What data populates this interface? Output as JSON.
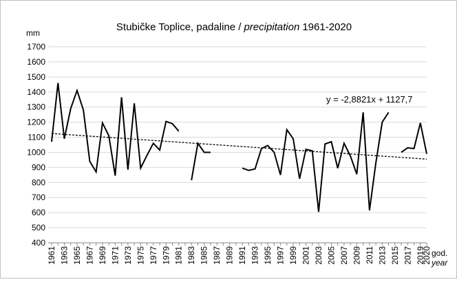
{
  "chart_data": {
    "type": "line",
    "title": [
      "Stubičke Toplice, padaline /",
      "precipitation",
      "1961-2020"
    ],
    "y_label": "mm",
    "x_label": [
      "god.",
      "year"
    ],
    "categories": [
      "1961",
      null,
      "1963",
      null,
      "1965",
      null,
      "1967",
      null,
      "1969",
      null,
      "1971",
      null,
      "1973",
      null,
      "1975",
      null,
      "1977",
      null,
      "1979",
      null,
      "1981",
      null,
      "1983",
      null,
      "1985",
      null,
      "1987",
      null,
      "1989",
      null,
      "1991",
      null,
      "1993",
      null,
      "1995",
      null,
      "1997",
      null,
      "1999",
      null,
      "2001",
      null,
      "2003",
      null,
      "2005",
      null,
      "2007",
      null,
      "2009",
      null,
      "2011",
      null,
      "2013",
      null,
      "2015",
      null,
      "2017",
      null,
      "2019",
      "2020"
    ],
    "values": [
      1070,
      1460,
      1090,
      1290,
      1410,
      1280,
      940,
      870,
      1195,
      1110,
      845,
      1365,
      885,
      1325,
      895,
      980,
      1060,
      1015,
      1205,
      1190,
      1140,
      null,
      815,
      1060,
      1000,
      1000,
      null,
      null,
      null,
      null,
      895,
      880,
      890,
      1025,
      1045,
      1000,
      850,
      1150,
      1090,
      825,
      1020,
      1010,
      605,
      1055,
      1070,
      895,
      1060,
      975,
      855,
      1265,
      615,
      930,
      1200,
      1265,
      null,
      1000,
      1030,
      1025,
      1195,
      990
    ],
    "color": "#000000",
    "ylim": [
      400,
      1700
    ],
    "yticks": [
      400,
      500,
      600,
      700,
      800,
      900,
      1000,
      1100,
      1200,
      1300,
      1400,
      1500,
      1600,
      1700
    ],
    "grid": true,
    "trendline": {
      "slope": -2.8821,
      "intercept": 1127.7,
      "label": "y = -2,8821x + 1127,7"
    }
  }
}
